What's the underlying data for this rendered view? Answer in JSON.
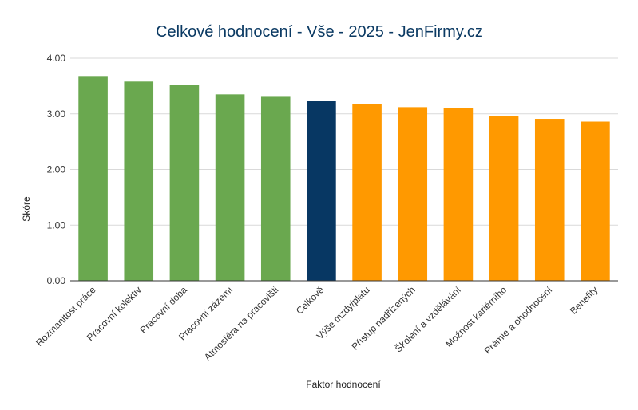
{
  "chart_data": {
    "type": "bar",
    "title": "Celkové hodnocení - Vše - 2025 - JenFirmy.cz",
    "xlabel": "Faktor hodnocení",
    "ylabel": "Skóre",
    "ylim": [
      0,
      4
    ],
    "yticks": [
      "0.00",
      "1.00",
      "2.00",
      "3.00",
      "4.00"
    ],
    "grid": true,
    "legend": "none",
    "categories": [
      "Rozmanitost práce",
      "Pracovní kolektiv",
      "Pracovní doba",
      "Pracovní zázemí",
      "Atmosféra na pracovišti",
      "Celkově",
      "Výše mzdy/platu",
      "Přístup nadřízených",
      "Školení a vzdělávání",
      "Možnost kariérního",
      "Prémie a ohodnocení",
      "Benefity"
    ],
    "values": [
      3.68,
      3.58,
      3.52,
      3.35,
      3.32,
      3.23,
      3.18,
      3.12,
      3.11,
      2.96,
      2.91,
      2.86
    ],
    "bar_colors": [
      "#6aa84f",
      "#6aa84f",
      "#6aa84f",
      "#6aa84f",
      "#6aa84f",
      "#073763",
      "#ff9900",
      "#ff9900",
      "#ff9900",
      "#ff9900",
      "#ff9900",
      "#ff9900"
    ],
    "colors": {
      "above_average": "#6aa84f",
      "overall": "#073763",
      "below_average": "#ff9900",
      "title": "#0b3a63",
      "grid": "#d9d9d9",
      "axis": "#333333"
    }
  }
}
